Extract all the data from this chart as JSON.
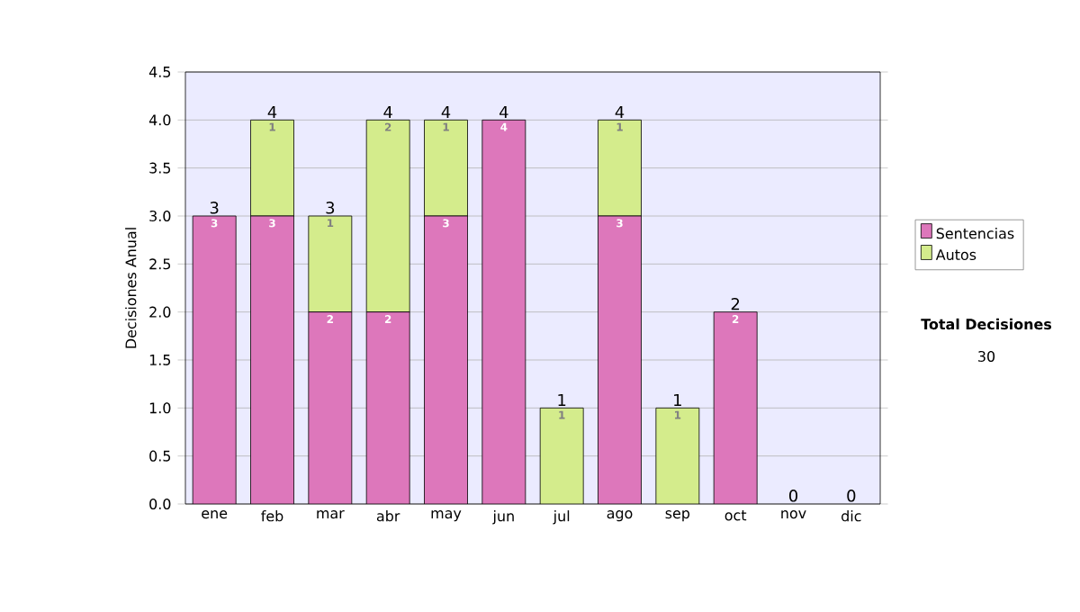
{
  "chart_data": {
    "type": "bar",
    "stacked": true,
    "categories": [
      "ene",
      "feb",
      "mar",
      "abr",
      "may",
      "jun",
      "jul",
      "ago",
      "sep",
      "oct",
      "nov",
      "dic"
    ],
    "series": [
      {
        "name": "Sentencias",
        "color": "#dd77bb",
        "values": [
          3,
          3,
          2,
          2,
          3,
          4,
          0,
          3,
          0,
          2,
          0,
          0
        ],
        "value_labels": [
          "3",
          "3",
          "2",
          "2",
          "3",
          "4",
          null,
          "3",
          null,
          "2",
          null,
          null
        ]
      },
      {
        "name": "Autos",
        "color": "#d4ec8c",
        "values": [
          0,
          1,
          1,
          2,
          1,
          0,
          1,
          1,
          1,
          0,
          0,
          0
        ],
        "value_labels": [
          null,
          "1",
          "1",
          "2",
          "1",
          null,
          "1",
          "1",
          "1",
          null,
          null,
          null
        ]
      }
    ],
    "totals": [
      "3",
      "4",
      "3",
      "4",
      "4",
      "4",
      "1",
      "4",
      "1",
      "2",
      "0",
      "0"
    ],
    "ylabel": "Decisiones Anual",
    "ylim": [
      0,
      4.5
    ],
    "yticks": [
      {
        "value": 0,
        "label": "0.0"
      },
      {
        "value": 0.5,
        "label": "0.5"
      },
      {
        "value": 1,
        "label": "1.0"
      },
      {
        "value": 1.5,
        "label": "1.5"
      },
      {
        "value": 2,
        "label": "2.0"
      },
      {
        "value": 2.5,
        "label": "2.5"
      },
      {
        "value": 3,
        "label": "3.0"
      },
      {
        "value": 3.5,
        "label": "3.5"
      },
      {
        "value": 4,
        "label": "4.0"
      },
      {
        "value": 4.5,
        "label": "4.5"
      }
    ],
    "grid": "y",
    "legend": "right",
    "annotations": [
      "Total Decisiones",
      "30"
    ]
  }
}
